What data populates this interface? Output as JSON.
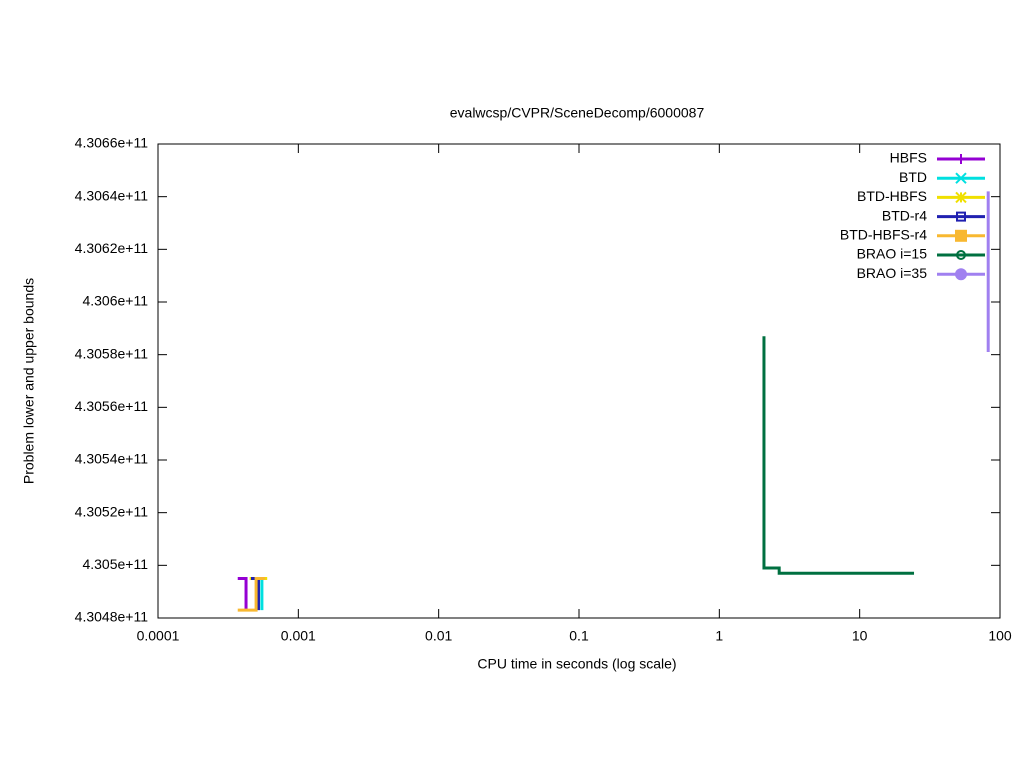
{
  "chart_data": {
    "type": "line",
    "title": "evalwcsp/CVPR/SceneDecomp/6000087",
    "x_label": "CPU time in seconds (log scale)",
    "y_label": "Problem lower and upper bounds",
    "xlog": true,
    "xlim": [
      0.0001,
      100
    ],
    "xticks": [
      0.0001,
      0.001,
      0.01,
      0.1,
      1,
      10,
      100
    ],
    "ylim": [
      430480000000,
      430660000000
    ],
    "yticks": [
      {
        "value": 430480000000,
        "label": "4.3048e+11"
      },
      {
        "value": 430500000000,
        "label": "4.305e+11"
      },
      {
        "value": 430520000000,
        "label": "4.3052e+11"
      },
      {
        "value": 430540000000,
        "label": "4.3054e+11"
      },
      {
        "value": 430560000000,
        "label": "4.3056e+11"
      },
      {
        "value": 430580000000,
        "label": "4.3058e+11"
      },
      {
        "value": 430600000000,
        "label": "4.306e+11"
      },
      {
        "value": 430620000000,
        "label": "4.3062e+11"
      },
      {
        "value": 430640000000,
        "label": "4.3064e+11"
      },
      {
        "value": 430660000000,
        "label": "4.3066e+11"
      }
    ],
    "legend": "top-right",
    "series": [
      {
        "name": "HBFS",
        "color": "#9400d3",
        "marker": "plus",
        "x": [
          0.00037,
          0.000424,
          0.000424
        ],
        "values": [
          430495000000,
          430495000000,
          430483000000
        ]
      },
      {
        "name": "BTD",
        "color": "#00e0e0",
        "marker": "cross",
        "x": [
          0.00048,
          0.00055,
          0.00055
        ],
        "values": [
          430495000000,
          430495000000,
          430483000000
        ]
      },
      {
        "name": "BTD-HBFS",
        "color": "#f0e000",
        "marker": "star",
        "x": [
          0.00045,
          0.0006
        ],
        "values": [
          430495000000,
          430495000000
        ]
      },
      {
        "name": "BTD-r4",
        "color": "#2020b0",
        "marker": "square-open",
        "x": [
          0.00046,
          0.00052,
          0.00052
        ],
        "values": [
          430495000000,
          430495000000,
          430483000000
        ]
      },
      {
        "name": "BTD-HBFS-r4",
        "color": "#f8b830",
        "marker": "square",
        "x": [
          0.00037,
          0.0005,
          0.0005,
          0.00058
        ],
        "values": [
          430483000000,
          430483000000,
          430495000000,
          430495000000
        ]
      },
      {
        "name": "BRAO i=15",
        "color": "#007040",
        "marker": "circle-open",
        "x": [
          2.08,
          2.08,
          2.67,
          2.67,
          24.4
        ],
        "values": [
          430587000000,
          430499000000,
          430499000000,
          430497000000,
          430497000000
        ]
      },
      {
        "name": "BRAO i=35",
        "color": "#a080f0",
        "marker": "circle",
        "x": [
          82.4,
          82.4
        ],
        "values": [
          430642000000,
          430581000000
        ]
      }
    ]
  }
}
